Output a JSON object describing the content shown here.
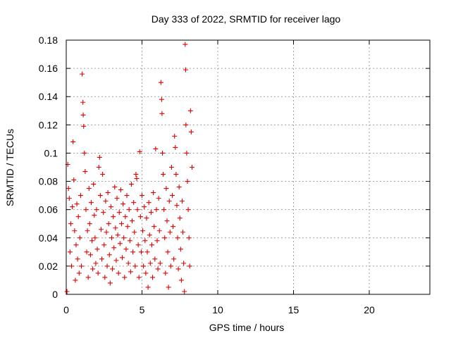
{
  "colors": {
    "series": "#e00000"
  },
  "chart_data": {
    "type": "scatter",
    "title": "Day 333 of 2022, SRMTID for receiver lago",
    "xlabel": "GPS time / hours",
    "ylabel": "SRMTID / TECUs",
    "xlim": [
      0,
      24
    ],
    "ylim": [
      0,
      0.18
    ],
    "x_ticks": [
      0,
      5,
      10,
      15,
      20
    ],
    "y_ticks": [
      0,
      0.02,
      0.04,
      0.06,
      0.08,
      0.1,
      0.12,
      0.14,
      0.16,
      0.18
    ],
    "x_tick_labels": [
      "0",
      "5",
      "10",
      "15",
      "20"
    ],
    "y_tick_labels": [
      "0",
      "0.02",
      "0.04",
      "0.06",
      "0.08",
      "0.1",
      "0.12",
      "0.14",
      "0.16",
      "0.18"
    ],
    "grid": true,
    "legend": "none",
    "marker": "plus",
    "points": [
      [
        0.05,
        0.002
      ],
      [
        0.1,
        0.092
      ],
      [
        0.15,
        0.075
      ],
      [
        0.2,
        0.068
      ],
      [
        0.25,
        0.03
      ],
      [
        0.3,
        0.05
      ],
      [
        0.35,
        0.02
      ],
      [
        0.4,
        0.062
      ],
      [
        0.45,
        0.108
      ],
      [
        0.5,
        0.081
      ],
      [
        0.55,
        0.045
      ],
      [
        0.6,
        0.01
      ],
      [
        0.65,
        0.035
      ],
      [
        0.7,
        0.064
      ],
      [
        0.75,
        0.025
      ],
      [
        0.8,
        0.055
      ],
      [
        0.85,
        0.015
      ],
      [
        0.9,
        0.04
      ],
      [
        0.95,
        0.07
      ],
      [
        1.0,
        0.02
      ],
      [
        1.05,
        0.156
      ],
      [
        1.1,
        0.136
      ],
      [
        1.12,
        0.127
      ],
      [
        1.15,
        0.119
      ],
      [
        1.2,
        0.1
      ],
      [
        1.25,
        0.087
      ],
      [
        1.3,
        0.06
      ],
      [
        1.35,
        0.03
      ],
      [
        1.4,
        0.045
      ],
      [
        1.45,
        0.012
      ],
      [
        1.5,
        0.075
      ],
      [
        1.55,
        0.05
      ],
      [
        1.6,
        0.028
      ],
      [
        1.65,
        0.065
      ],
      [
        1.7,
        0.038
      ],
      [
        1.75,
        0.018
      ],
      [
        1.8,
        0.078
      ],
      [
        1.85,
        0.056
      ],
      [
        1.9,
        0.04
      ],
      [
        1.95,
        0.022
      ],
      [
        2.0,
        0.06
      ],
      [
        2.05,
        0.032
      ],
      [
        2.1,
        0.015
      ],
      [
        2.15,
        0.09
      ],
      [
        2.2,
        0.097
      ],
      [
        2.25,
        0.07
      ],
      [
        2.3,
        0.046
      ],
      [
        2.35,
        0.025
      ],
      [
        2.4,
        0.085
      ],
      [
        2.45,
        0.058
      ],
      [
        2.5,
        0.035
      ],
      [
        2.55,
        0.012
      ],
      [
        2.6,
        0.066
      ],
      [
        2.65,
        0.044
      ],
      [
        2.7,
        0.02
      ],
      [
        2.75,
        0.072
      ],
      [
        2.8,
        0.05
      ],
      [
        2.85,
        0.028
      ],
      [
        2.9,
        0.008
      ],
      [
        2.95,
        0.062
      ],
      [
        3.0,
        0.04
      ],
      [
        3.05,
        0.018
      ],
      [
        3.1,
        0.055
      ],
      [
        3.15,
        0.033
      ],
      [
        3.2,
        0.076
      ],
      [
        3.25,
        0.047
      ],
      [
        3.3,
        0.024
      ],
      [
        3.35,
        0.068
      ],
      [
        3.4,
        0.042
      ],
      [
        3.45,
        0.015
      ],
      [
        3.5,
        0.058
      ],
      [
        3.55,
        0.036
      ],
      [
        3.6,
        0.074
      ],
      [
        3.65,
        0.05
      ],
      [
        3.7,
        0.026
      ],
      [
        3.75,
        0.064
      ],
      [
        3.8,
        0.04
      ],
      [
        3.85,
        0.012
      ],
      [
        3.9,
        0.055
      ],
      [
        3.95,
        0.032
      ],
      [
        4.0,
        0.07
      ],
      [
        4.05,
        0.048
      ],
      [
        4.1,
        0.022
      ],
      [
        4.15,
        0.06
      ],
      [
        4.2,
        0.038
      ],
      [
        4.25,
        0.016
      ],
      [
        4.3,
        0.078
      ],
      [
        4.35,
        0.052
      ],
      [
        4.4,
        0.03
      ],
      [
        4.45,
        0.065
      ],
      [
        4.5,
        0.044
      ],
      [
        4.55,
        0.02
      ],
      [
        4.6,
        0.085
      ],
      [
        4.65,
        0.082
      ],
      [
        4.7,
        0.06
      ],
      [
        4.75,
        0.035
      ],
      [
        4.8,
        0.012
      ],
      [
        4.85,
        0.101
      ],
      [
        4.9,
        0.055
      ],
      [
        4.95,
        0.03
      ],
      [
        5.0,
        0.07
      ],
      [
        5.05,
        0.045
      ],
      [
        5.1,
        0.02
      ],
      [
        5.15,
        0.062
      ],
      [
        5.2,
        0.038
      ],
      [
        5.25,
        0.015
      ],
      [
        5.3,
        0.054
      ],
      [
        5.35,
        0.03
      ],
      [
        5.4,
        0.005
      ],
      [
        5.45,
        0.065
      ],
      [
        5.5,
        0.042
      ],
      [
        5.55,
        0.022
      ],
      [
        5.6,
        0.058
      ],
      [
        5.65,
        0.035
      ],
      [
        5.7,
        0.012
      ],
      [
        5.75,
        0.072
      ],
      [
        5.8,
        0.048
      ],
      [
        5.85,
        0.025
      ],
      [
        5.9,
        0.103
      ],
      [
        5.95,
        0.06
      ],
      [
        6.0,
        0.038
      ],
      [
        6.05,
        0.018
      ],
      [
        6.1,
        0.068
      ],
      [
        6.15,
        0.045
      ],
      [
        6.2,
        0.022
      ],
      [
        6.25,
        0.15
      ],
      [
        6.3,
        0.138
      ],
      [
        6.32,
        0.128
      ],
      [
        6.35,
        0.1
      ],
      [
        6.4,
        0.085
      ],
      [
        6.45,
        0.06
      ],
      [
        6.5,
        0.04
      ],
      [
        6.55,
        0.015
      ],
      [
        6.6,
        0.075
      ],
      [
        6.65,
        0.052
      ],
      [
        6.7,
        0.03
      ],
      [
        6.75,
        0.005
      ],
      [
        6.8,
        0.066
      ],
      [
        6.85,
        0.044
      ],
      [
        6.9,
        0.02
      ],
      [
        6.95,
        0.09
      ],
      [
        7.0,
        0.07
      ],
      [
        7.05,
        0.048
      ],
      [
        7.1,
        0.025
      ],
      [
        7.15,
        0.112
      ],
      [
        7.2,
        0.104
      ],
      [
        7.25,
        0.085
      ],
      [
        7.3,
        0.063
      ],
      [
        7.35,
        0.04
      ],
      [
        7.4,
        0.018
      ],
      [
        7.45,
        0.076
      ],
      [
        7.5,
        0.054
      ],
      [
        7.55,
        0.032
      ],
      [
        7.6,
        0.01
      ],
      [
        7.65,
        0.066
      ],
      [
        7.7,
        0.044
      ],
      [
        7.75,
        0.022
      ],
      [
        7.8,
        0.002
      ],
      [
        7.85,
        0.177
      ],
      [
        7.88,
        0.159
      ],
      [
        7.9,
        0.12
      ],
      [
        7.95,
        0.1
      ],
      [
        8.0,
        0.08
      ],
      [
        8.05,
        0.06
      ],
      [
        8.1,
        0.04
      ],
      [
        8.15,
        0.02
      ],
      [
        8.2,
        0.13
      ],
      [
        8.25,
        0.115
      ],
      [
        8.3,
        0.09
      ]
    ]
  }
}
